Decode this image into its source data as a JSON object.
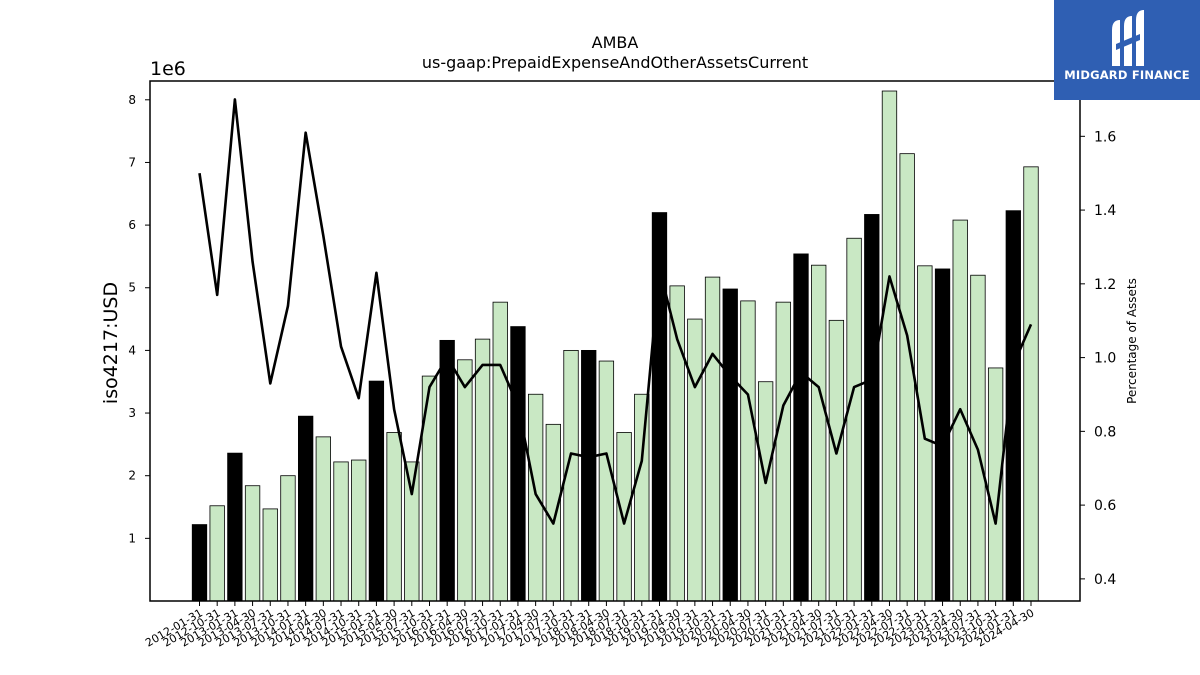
{
  "chart_data": {
    "type": "bar",
    "title": "AMBA",
    "subtitle": "us-gaap:PrepaidExpenseAndOtherAssetsCurrent",
    "ylabel": "iso4217:USD",
    "y2label": "Percentage of Assets",
    "y_offset_label": "1e6",
    "ylim": [
      0,
      8.3
    ],
    "y2lim": [
      0.34,
      1.75
    ],
    "yticks": [
      1,
      2,
      3,
      4,
      5,
      6,
      7,
      8
    ],
    "y2ticks": [
      0.4,
      0.6,
      0.8,
      1.0,
      1.2,
      1.4,
      1.6
    ],
    "grid": false,
    "categories": [
      "2012-01-31",
      "2012-10-31",
      "2013-01-31",
      "2013-04-30",
      "2013-07-31",
      "2013-10-31",
      "2014-01-31",
      "2014-04-30",
      "2014-07-31",
      "2014-10-31",
      "2015-01-31",
      "2015-04-30",
      "2015-07-31",
      "2015-10-31",
      "2016-01-31",
      "2016-04-30",
      "2016-07-31",
      "2016-10-31",
      "2017-01-31",
      "2017-04-30",
      "2017-07-31",
      "2017-10-31",
      "2018-01-31",
      "2018-04-30",
      "2018-07-31",
      "2018-10-31",
      "2019-01-31",
      "2019-04-30",
      "2019-07-31",
      "2019-10-31",
      "2020-01-31",
      "2020-04-30",
      "2020-07-31",
      "2020-10-31",
      "2021-01-31",
      "2021-04-30",
      "2021-07-31",
      "2021-10-31",
      "2022-01-31",
      "2022-04-30",
      "2022-07-31",
      "2022-10-31",
      "2023-01-31",
      "2023-04-30",
      "2023-07-31",
      "2023-10-31",
      "2024-01-31",
      "2024-04-30"
    ],
    "tick_labels": [
      "2012-01-31",
      "2012-10-31",
      "2013-01-31",
      "2013-04-30",
      "2013-07-31",
      "2013-10-31",
      "2014-01-31",
      "2014-04-30",
      "2014-07-31",
      "2014-10-31",
      "2015-01-31",
      "2015-04-30",
      "2015-07-31",
      "2015-10-31",
      "2016-01-31",
      "2016-04-30",
      "2016-07-31",
      "2016-10-31",
      "2017-01-31",
      "2017-04-30",
      "2017-07-31",
      "2017-10-31",
      "2018-01-31",
      "2018-04-30",
      "2018-07-31",
      "2018-10-31",
      "2019-01-31",
      "2019-04-30",
      "2019-07-31",
      "2019-10-31",
      "2020-01-31",
      "2020-04-30",
      "2020-07-31",
      "2020-10-31",
      "2021-01-31",
      "2021-04-30",
      "2021-07-31",
      "2021-10-31",
      "2022-01-31",
      "2022-04-30",
      "2022-07-31",
      "2022-10-31",
      "2023-01-31",
      "2023-04-30",
      "2023-07-31",
      "2023-10-31",
      "2024-01-31",
      "2024-04-30"
    ],
    "values": [
      1.22,
      1.52,
      2.36,
      1.84,
      1.47,
      2.0,
      2.95,
      2.62,
      2.22,
      2.25,
      3.51,
      2.69,
      2.22,
      3.59,
      4.16,
      3.85,
      4.18,
      4.77,
      4.38,
      3.3,
      2.82,
      4.0,
      4.0,
      3.83,
      2.69,
      3.3,
      6.2,
      5.03,
      4.5,
      5.17,
      4.98,
      4.79,
      3.5,
      4.77,
      5.54,
      5.36,
      4.48,
      5.79,
      6.17,
      8.14,
      7.14,
      5.35,
      5.3,
      6.08,
      5.2,
      3.72,
      6.23,
      6.93
    ],
    "annual_flags": [
      true,
      false,
      true,
      false,
      false,
      false,
      true,
      false,
      false,
      false,
      true,
      false,
      false,
      false,
      true,
      false,
      false,
      false,
      true,
      false,
      false,
      false,
      true,
      false,
      false,
      false,
      true,
      false,
      false,
      false,
      true,
      false,
      false,
      false,
      true,
      false,
      false,
      false,
      true,
      false,
      false,
      false,
      true,
      false,
      false,
      false,
      true,
      false
    ],
    "pct": [
      1.5,
      1.17,
      1.7,
      1.26,
      0.93,
      1.14,
      1.61,
      1.33,
      1.03,
      0.89,
      1.23,
      0.86,
      0.63,
      0.92,
      1.0,
      0.92,
      0.98,
      0.98,
      0.87,
      0.63,
      0.55,
      0.74,
      0.73,
      0.74,
      0.55,
      0.72,
      1.24,
      1.05,
      0.92,
      1.01,
      0.95,
      0.9,
      0.66,
      0.87,
      0.96,
      0.92,
      0.74,
      0.92,
      0.94,
      1.22,
      1.06,
      0.78,
      0.76,
      0.86,
      0.75,
      0.55,
      0.98,
      1.09
    ],
    "colors": {
      "annual_bar": "#000000",
      "quarter_bar": "#c9e8c4",
      "line": "#000000",
      "edge": "#000000"
    }
  },
  "logo": {
    "text": "MIDGARD FINANCE",
    "bg": "#2f5fb3",
    "fg": "#ffffff"
  }
}
